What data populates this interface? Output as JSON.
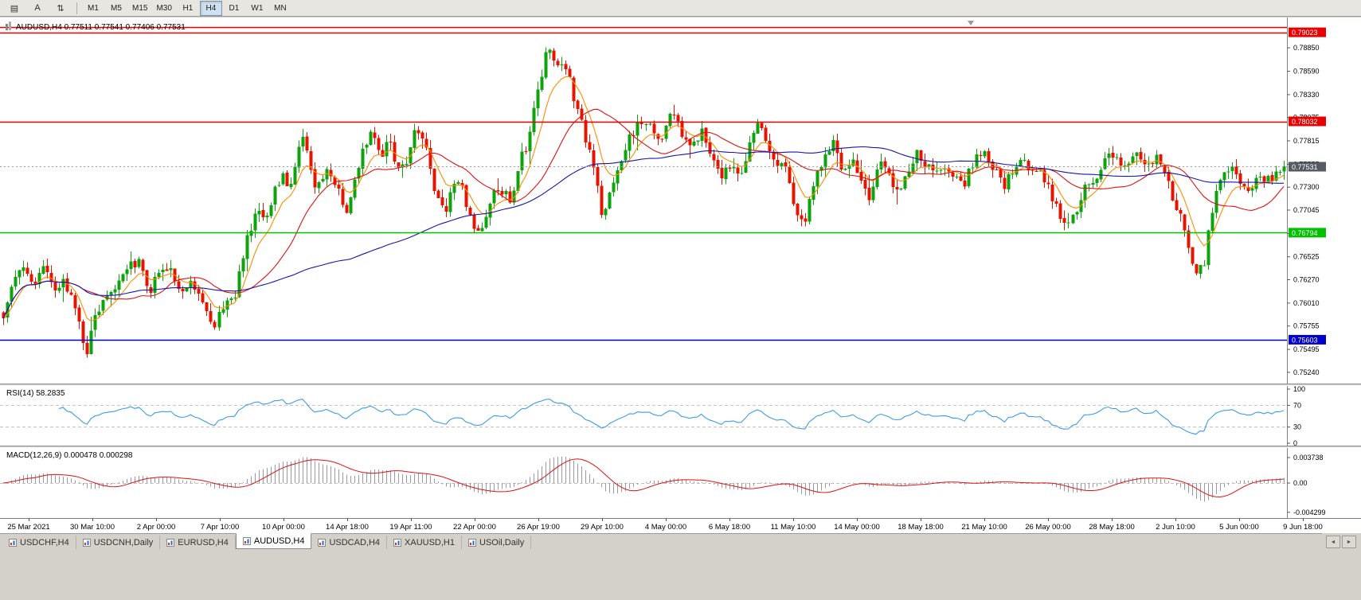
{
  "toolbar": {
    "icons": [
      {
        "name": "chart-windows-icon",
        "glyph": "▤"
      },
      {
        "name": "cursor-a-icon",
        "glyph": "A"
      },
      {
        "name": "scale-updown-icon",
        "glyph": "⇅"
      }
    ],
    "timeframes": [
      "M1",
      "M5",
      "M15",
      "M30",
      "H1",
      "H4",
      "D1",
      "W1",
      "MN"
    ],
    "active_timeframe": "H4"
  },
  "chart_header": {
    "symbol": "AUDUSD,H4",
    "open": "0.77511",
    "high": "0.77541",
    "low": "0.77406",
    "close": "0.77531"
  },
  "indicator_labels": {
    "rsi": "RSI(14) 58.2835",
    "macd": "MACD(12,26,9) 0.000478 0.000298"
  },
  "tabs": {
    "items": [
      "USDCHF,H4",
      "USDCNH,Daily",
      "EURUSD,H4",
      "AUDUSD,H4",
      "USDCAD,H4",
      "XAUUSD,H1",
      "USOil,Daily"
    ],
    "active": "AUDUSD,H4",
    "scroll_left": "◄",
    "scroll_right": "►"
  },
  "chart_data": {
    "type": "candlestick",
    "symbol": "AUDUSD",
    "timeframe": "H4",
    "last_ohlc": {
      "open": 0.77511,
      "high": 0.77541,
      "low": 0.77406,
      "close": 0.77531
    },
    "price_range": {
      "top": 0.7917,
      "bottom": 0.75115
    },
    "y_ticks": [
      0.7885,
      0.7859,
      0.7833,
      0.78075,
      0.77815,
      0.77555,
      0.773,
      0.77045,
      0.76785,
      0.76525,
      0.7627,
      0.7601,
      0.75755,
      0.75495,
      0.7524
    ],
    "x_labels": [
      "25 Mar 2021",
      "30 Mar 10:00",
      "2 Apr 00:00",
      "7 Apr 10:00",
      "10 Apr 00:00",
      "14 Apr 18:00",
      "19 Apr 11:00",
      "22 Apr 00:00",
      "26 Apr 19:00",
      "29 Apr 10:00",
      "4 May 00:00",
      "6 May 18:00",
      "11 May 10:00",
      "14 May 00:00",
      "18 May 18:00",
      "21 May 10:00",
      "26 May 00:00",
      "28 May 18:00",
      "2 Jun 10:00",
      "5 Jun 00:00",
      "9 Jun 18:00"
    ],
    "candle_count": 322,
    "anchors_unit": "chart_px_to_price",
    "price_path_anchors": [
      [
        4,
        0.7588
      ],
      [
        15,
        0.7625
      ],
      [
        30,
        0.7642
      ],
      [
        42,
        0.7618
      ],
      [
        55,
        0.7638
      ],
      [
        68,
        0.761
      ],
      [
        80,
        0.7625
      ],
      [
        95,
        0.7598
      ],
      [
        103,
        0.756
      ],
      [
        107,
        0.7535
      ],
      [
        112,
        0.756
      ],
      [
        118,
        0.758
      ],
      [
        130,
        0.7606
      ],
      [
        145,
        0.7622
      ],
      [
        160,
        0.7638
      ],
      [
        173,
        0.7648
      ],
      [
        186,
        0.7612
      ],
      [
        200,
        0.7632
      ],
      [
        213,
        0.7642
      ],
      [
        226,
        0.7608
      ],
      [
        240,
        0.7626
      ],
      [
        254,
        0.7598
      ],
      [
        268,
        0.7574
      ],
      [
        282,
        0.7602
      ],
      [
        295,
        0.7612
      ],
      [
        308,
        0.7668
      ],
      [
        320,
        0.7702
      ],
      [
        332,
        0.7692
      ],
      [
        344,
        0.7726
      ],
      [
        356,
        0.7742
      ],
      [
        366,
        0.7728
      ],
      [
        374,
        0.777
      ],
      [
        378,
        0.78
      ],
      [
        383,
        0.7772
      ],
      [
        388,
        0.7756
      ],
      [
        396,
        0.7722
      ],
      [
        408,
        0.7748
      ],
      [
        420,
        0.7738
      ],
      [
        432,
        0.7698
      ],
      [
        444,
        0.7732
      ],
      [
        456,
        0.7772
      ],
      [
        467,
        0.7796
      ],
      [
        478,
        0.7766
      ],
      [
        490,
        0.7782
      ],
      [
        501,
        0.7742
      ],
      [
        512,
        0.7762
      ],
      [
        523,
        0.7798
      ],
      [
        534,
        0.7772
      ],
      [
        547,
        0.7716
      ],
      [
        559,
        0.7698
      ],
      [
        571,
        0.7742
      ],
      [
        582,
        0.7722
      ],
      [
        593,
        0.7692
      ],
      [
        605,
        0.7678
      ],
      [
        617,
        0.7722
      ],
      [
        629,
        0.7728
      ],
      [
        641,
        0.7714
      ],
      [
        653,
        0.7762
      ],
      [
        664,
        0.7782
      ],
      [
        676,
        0.7842
      ],
      [
        688,
        0.7886
      ],
      [
        698,
        0.7858
      ],
      [
        708,
        0.7872
      ],
      [
        720,
        0.7832
      ],
      [
        733,
        0.7792
      ],
      [
        745,
        0.7752
      ],
      [
        757,
        0.7698
      ],
      [
        769,
        0.7728
      ],
      [
        781,
        0.7765
      ],
      [
        793,
        0.7788
      ],
      [
        806,
        0.7802
      ],
      [
        818,
        0.7792
      ],
      [
        830,
        0.778
      ],
      [
        842,
        0.7812
      ],
      [
        855,
        0.7792
      ],
      [
        868,
        0.7776
      ],
      [
        880,
        0.7792
      ],
      [
        893,
        0.7762
      ],
      [
        906,
        0.7744
      ],
      [
        918,
        0.7758
      ],
      [
        930,
        0.7744
      ],
      [
        941,
        0.7778
      ],
      [
        951,
        0.7806
      ],
      [
        962,
        0.7772
      ],
      [
        974,
        0.7762
      ],
      [
        986,
        0.7748
      ],
      [
        998,
        0.7706
      ],
      [
        1010,
        0.7692
      ],
      [
        1022,
        0.7738
      ],
      [
        1034,
        0.7762
      ],
      [
        1046,
        0.7778
      ],
      [
        1058,
        0.7744
      ],
      [
        1070,
        0.7764
      ],
      [
        1081,
        0.7736
      ],
      [
        1092,
        0.7718
      ],
      [
        1103,
        0.7762
      ],
      [
        1115,
        0.7744
      ],
      [
        1127,
        0.7728
      ],
      [
        1139,
        0.7744
      ],
      [
        1151,
        0.7772
      ],
      [
        1163,
        0.7756
      ],
      [
        1175,
        0.7748
      ],
      [
        1187,
        0.7756
      ],
      [
        1199,
        0.7742
      ],
      [
        1211,
        0.7736
      ],
      [
        1223,
        0.7756
      ],
      [
        1235,
        0.7772
      ],
      [
        1247,
        0.7752
      ],
      [
        1259,
        0.7732
      ],
      [
        1271,
        0.7742
      ],
      [
        1283,
        0.7758
      ],
      [
        1295,
        0.7748
      ],
      [
        1307,
        0.7742
      ],
      [
        1319,
        0.7726
      ],
      [
        1331,
        0.7696
      ],
      [
        1343,
        0.7684
      ],
      [
        1355,
        0.7716
      ],
      [
        1367,
        0.7736
      ],
      [
        1379,
        0.7742
      ],
      [
        1391,
        0.7772
      ],
      [
        1403,
        0.7762
      ],
      [
        1415,
        0.7752
      ],
      [
        1427,
        0.7772
      ],
      [
        1439,
        0.7752
      ],
      [
        1451,
        0.7768
      ],
      [
        1463,
        0.7742
      ],
      [
        1475,
        0.7712
      ],
      [
        1487,
        0.768
      ],
      [
        1496,
        0.7648
      ],
      [
        1504,
        0.7634
      ],
      [
        1512,
        0.7648
      ],
      [
        1520,
        0.7696
      ],
      [
        1530,
        0.7742
      ],
      [
        1542,
        0.7752
      ],
      [
        1554,
        0.7738
      ],
      [
        1566,
        0.7726
      ],
      [
        1578,
        0.7742
      ],
      [
        1590,
        0.7734
      ],
      [
        1602,
        0.7748
      ],
      [
        1613,
        0.7753
      ]
    ],
    "horizontal_levels": [
      {
        "price": 0.79078,
        "color": "#e80000",
        "label": null
      },
      {
        "price": 0.79023,
        "color": "#e80000",
        "label": "0.79023"
      },
      {
        "price": 0.78032,
        "color": "#e80000",
        "label": "0.78032"
      },
      {
        "price": 0.76794,
        "color": "#00c000",
        "label": "0.76794"
      },
      {
        "price": 0.75603,
        "color": "#0000cc",
        "label": "0.75603"
      }
    ],
    "current_price": {
      "value": 0.77531,
      "label": "0.77531",
      "tag_color": "#565b63"
    },
    "candle_colors": {
      "up": "#0ca30c",
      "down": "#e51400"
    },
    "moving_averages": [
      {
        "name": "ma-fast",
        "method": "ema",
        "period": 8,
        "color": "#ff8c00"
      },
      {
        "name": "ma-mid",
        "method": "sma",
        "period": 21,
        "color": "#e01010"
      },
      {
        "name": "ma-slow",
        "method": "sma",
        "period": 88,
        "color": "#1414b4"
      }
    ],
    "rsi": {
      "period": 14,
      "value": 58.2835,
      "levels": [
        100,
        70,
        30,
        0
      ],
      "dashed_levels": [
        70,
        30
      ],
      "color": "#3d9be9"
    },
    "macd": {
      "fast": 12,
      "slow": 26,
      "signal": 9,
      "value": 0.000478,
      "signal_value": 0.000298,
      "axis": [
        {
          "v": 0.003738,
          "t": "0.003738"
        },
        {
          "v": 0,
          "t": "0.00"
        },
        {
          "v": -0.004299,
          "t": "-0.004299"
        }
      ],
      "hist_color": "#9b9b9b",
      "signal_color": "#e01010"
    }
  }
}
